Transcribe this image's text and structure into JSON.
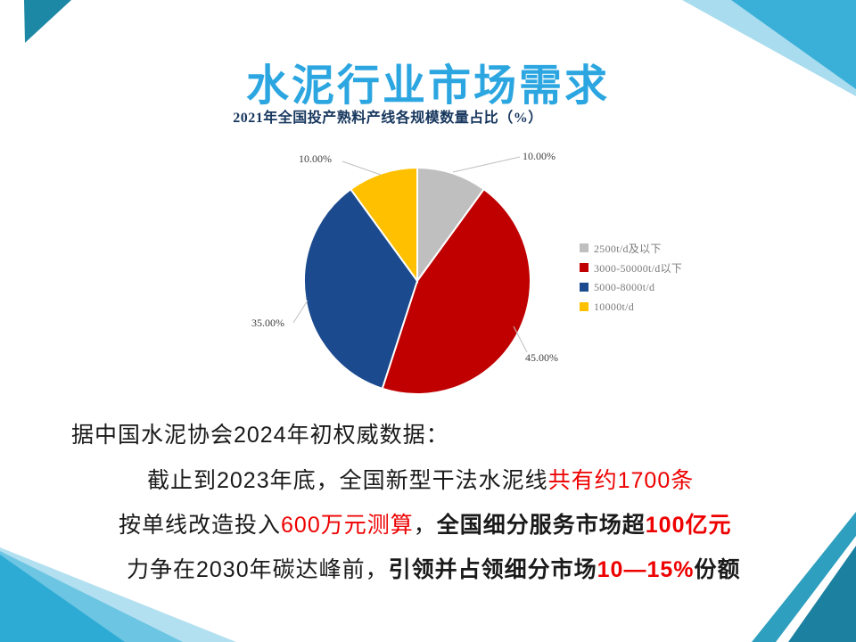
{
  "slide": {
    "title": "水泥行业市场需求"
  },
  "chart_data": {
    "type": "pie",
    "title": "2021年全国投产熟料产线各规模数量占比（%）",
    "categories": [
      "2500t/d及以下",
      "3000-50000t/d以下",
      "5000-8000t/d",
      "10000t/d"
    ],
    "values": [
      10,
      45,
      35,
      10
    ],
    "unit": "%",
    "slice_colors": [
      "#BFBFBF",
      "#C00000",
      "#1B4A8E",
      "#FFC000"
    ],
    "slice_labels": [
      "10.00%",
      "45.00%",
      "35.00%",
      "10.00%"
    ],
    "start_angle_deg": 0,
    "direction": "clockwise",
    "legend_position": "right"
  },
  "body": {
    "lines": [
      [
        {
          "text": "据中国水泥协会2024年初权威数据：",
          "color": "black",
          "bold": false
        }
      ],
      [
        {
          "text": "截止到2023年底，全国新型干法水泥线",
          "color": "black",
          "bold": false
        },
        {
          "text": "共有约1700条",
          "color": "red",
          "bold": false
        }
      ],
      [
        {
          "text": "按单线改造投入",
          "color": "black",
          "bold": false
        },
        {
          "text": "600万元测算",
          "color": "red",
          "bold": false
        },
        {
          "text": "，",
          "color": "black",
          "bold": false
        },
        {
          "text": "全国细分服务市场超",
          "color": "black",
          "bold": true
        },
        {
          "text": "100亿元",
          "color": "red",
          "bold": true
        }
      ],
      [
        {
          "text": "力争在2030年碳达峰前，",
          "color": "black",
          "bold": false
        },
        {
          "text": "引领并占领细分市场",
          "color": "black",
          "bold": true
        },
        {
          "text": "10—15%",
          "color": "red",
          "bold": true
        },
        {
          "text": "份额",
          "color": "black",
          "bold": true
        }
      ]
    ]
  },
  "colors": {
    "accent_red": "#EE0000",
    "text": "#1A1A1A",
    "title_blue": "#2CA6E0",
    "chart_title_navy": "#17375E",
    "leader_line": "#BFBFBF",
    "legend_text": "#7A7A7A",
    "pie_label": "#404040"
  },
  "decor": {
    "top_left_main": "#1D87A6",
    "top_right_light": "rgba(62,178,217,0.45)",
    "top_right_main": "#3AB0D8",
    "bottom_left_light": "rgba(62,178,217,0.40)",
    "bottom_left_mid": "rgba(62,178,217,0.60)",
    "bottom_left_main": "#2EABD5",
    "bottom_right_stripe": "#2E9FBE",
    "bottom_right_main": "#1C80A0"
  }
}
